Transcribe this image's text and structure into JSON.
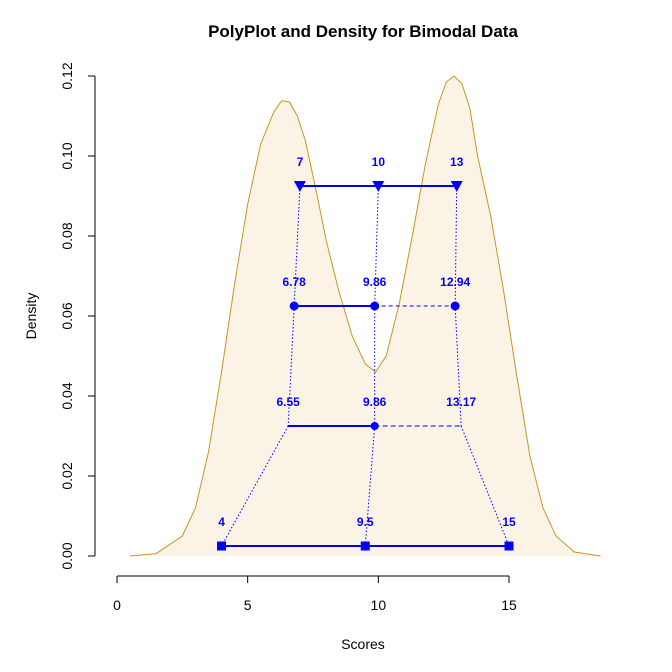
{
  "chart_data": {
    "type": "line",
    "title": "PolyPlot and Density for Bimodal Data",
    "xlabel": "Scores",
    "ylabel": "Density",
    "xlim": [
      0,
      18.5
    ],
    "ylim": [
      0,
      0.12
    ],
    "x_ticks": [
      0,
      5,
      10,
      15
    ],
    "y_ticks": [
      0.0,
      0.02,
      0.04,
      0.06,
      0.08,
      0.1,
      0.12
    ],
    "y_tick_labels": [
      "0.00",
      "0.02",
      "0.04",
      "0.06",
      "0.08",
      "0.10",
      "0.12"
    ],
    "grid": false,
    "colors": {
      "density_line": "#c8961e",
      "density_fill": "#fbf3e6",
      "polyplot": "#0000ff"
    },
    "density": {
      "x": [
        0.5,
        1.5,
        2.5,
        3.0,
        3.5,
        4.0,
        4.5,
        5.0,
        5.5,
        6.0,
        6.3,
        6.6,
        6.9,
        7.2,
        7.6,
        8.0,
        8.5,
        9.0,
        9.5,
        9.9,
        10.3,
        10.8,
        11.3,
        11.8,
        12.3,
        12.6,
        12.9,
        13.2,
        13.5,
        13.8,
        14.3,
        14.8,
        15.3,
        15.8,
        16.3,
        16.8,
        17.5,
        18.5
      ],
      "y": [
        0.0,
        0.0006,
        0.005,
        0.012,
        0.026,
        0.046,
        0.068,
        0.088,
        0.103,
        0.111,
        0.1138,
        0.1135,
        0.11,
        0.104,
        0.092,
        0.079,
        0.066,
        0.055,
        0.048,
        0.046,
        0.05,
        0.063,
        0.08,
        0.098,
        0.113,
        0.1185,
        0.12,
        0.118,
        0.112,
        0.1,
        0.085,
        0.066,
        0.045,
        0.025,
        0.012,
        0.005,
        0.001,
        0.0
      ]
    },
    "levels": [
      {
        "y": 0.0925,
        "marker": "triangle-down",
        "left": 7,
        "mid": 10,
        "right": 13,
        "labels": [
          "7",
          "10",
          "13"
        ]
      },
      {
        "y": 0.0625,
        "marker": "circle",
        "left": 6.78,
        "mid": 9.86,
        "right": 12.94,
        "labels": [
          "6.78",
          "9.86",
          "12.94"
        ]
      },
      {
        "y": 0.0325,
        "marker": "none",
        "left": 6.55,
        "mid": 9.86,
        "right": 13.17,
        "labels": [
          "6.55",
          "9.86",
          "13.17"
        ]
      },
      {
        "y": 0.0025,
        "marker": "square",
        "left": 4,
        "mid": 9.5,
        "right": 15,
        "labels": [
          "4",
          "9.5",
          "15"
        ]
      }
    ]
  }
}
